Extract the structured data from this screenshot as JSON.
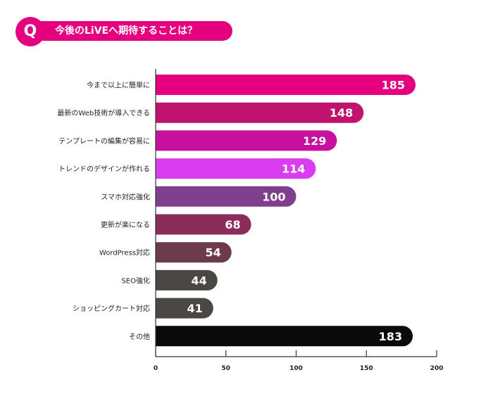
{
  "header": {
    "badge": "Q",
    "title": "今後のLiVEへ期待することは？",
    "color": "#e5007f"
  },
  "chart_data": {
    "type": "bar",
    "orientation": "horizontal",
    "title": "今後のLiVEへ期待することは？",
    "xlabel": "",
    "ylabel": "",
    "xlim": [
      0,
      200
    ],
    "xticks": [
      0,
      50,
      100,
      150,
      200
    ],
    "grid": false,
    "legend": "none",
    "categories": [
      "今まで以上に簡単に",
      "最新のWeb技術が導入できる",
      "テンプレートの編集が容易に",
      "トレンドのデザインが作れる",
      "スマホ対応強化",
      "更新が楽になる",
      "WordPress対応",
      "SEO強化",
      "ショッピングカート対応",
      "その他"
    ],
    "values": [
      185,
      148,
      129,
      114,
      100,
      68,
      54,
      44,
      41,
      183
    ],
    "colors": [
      "#e5007f",
      "#c0126f",
      "#c8109e",
      "#d83ef0",
      "#7e3f8c",
      "#8c2c5a",
      "#6b3a4d",
      "#4a4744",
      "#4a4744",
      "#0a0a0a"
    ]
  }
}
